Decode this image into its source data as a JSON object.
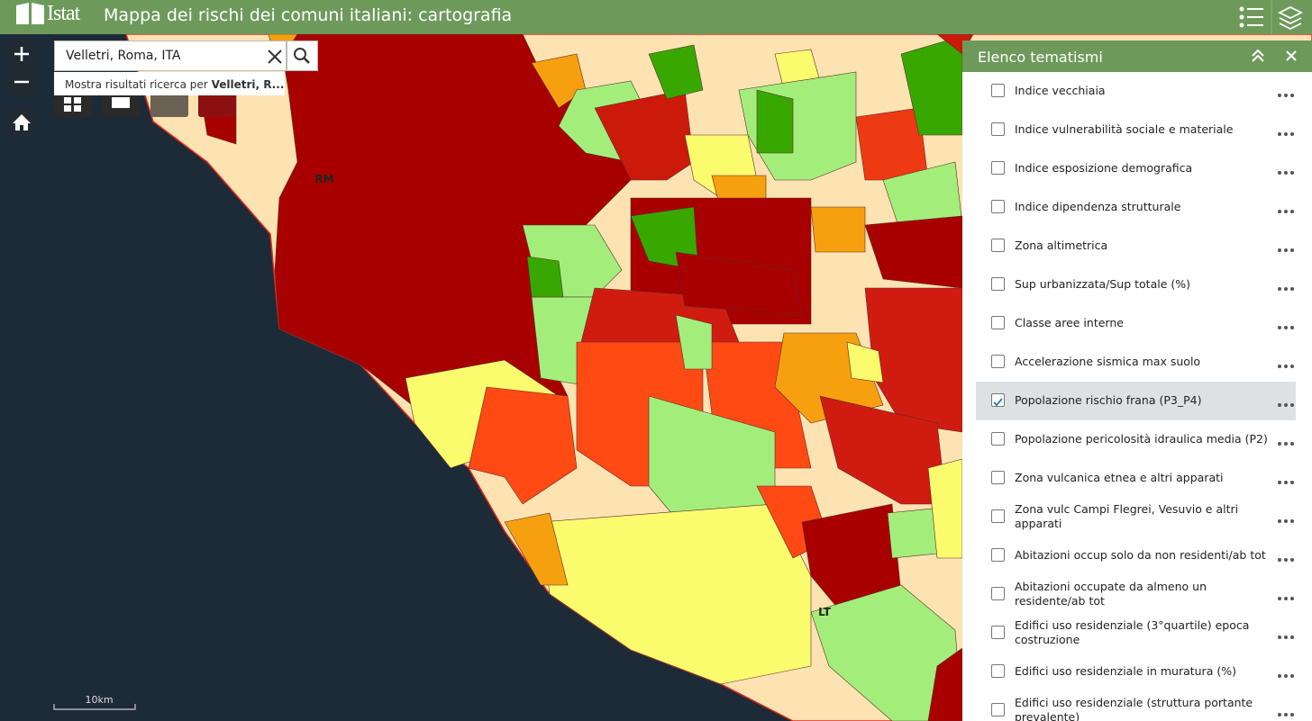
{
  "header": {
    "logo": "Istat",
    "title": "Mappa dei rischi dei comuni italiani: cartografia"
  },
  "search": {
    "query": "Velletri, Roma, ITA",
    "suggestion_prefix": "Mostra risultati ricerca per",
    "suggestion_match": "Velletri, R..."
  },
  "map": {
    "labels": [
      {
        "text": "RM"
      },
      {
        "text": "LT"
      }
    ],
    "scale": "10km"
  },
  "panel": {
    "title": "Elenco tematismi",
    "items": [
      {
        "label": "Indice vecchiaia",
        "checked": false
      },
      {
        "label": "Indice vulnerabilità sociale e materiale",
        "checked": false
      },
      {
        "label": "Indice esposizione demografica",
        "checked": false
      },
      {
        "label": "Indice dipendenza strutturale",
        "checked": false
      },
      {
        "label": "Zona altimetrica",
        "checked": false
      },
      {
        "label": "Sup urbanizzata/Sup totale (%)",
        "checked": false
      },
      {
        "label": "Classe aree interne",
        "checked": false
      },
      {
        "label": "Accelerazione sismica max suolo",
        "checked": false
      },
      {
        "label": "Popolazione rischio frana (P3_P4)",
        "checked": true
      },
      {
        "label": "Popolazione pericolosità idraulica media (P2)",
        "checked": false
      },
      {
        "label": "Zona vulcanica etnea e altri apparati",
        "checked": false
      },
      {
        "label": "Zona vulc Campi Flegrei, Vesuvio e altri apparati",
        "checked": false
      },
      {
        "label": "Abitazioni occup solo da non residenti/ab tot",
        "checked": false
      },
      {
        "label": "Abitazioni occupate da almeno un residente/ab tot",
        "checked": false
      },
      {
        "label": "Edifici uso residenziale (3°quartile) epoca costruzione",
        "checked": false
      },
      {
        "label": "Edifici uso residenziale in muratura (%)",
        "checked": false
      },
      {
        "label": "Edifici uso residenziale (struttura portante prevalente)",
        "checked": false
      }
    ]
  }
}
